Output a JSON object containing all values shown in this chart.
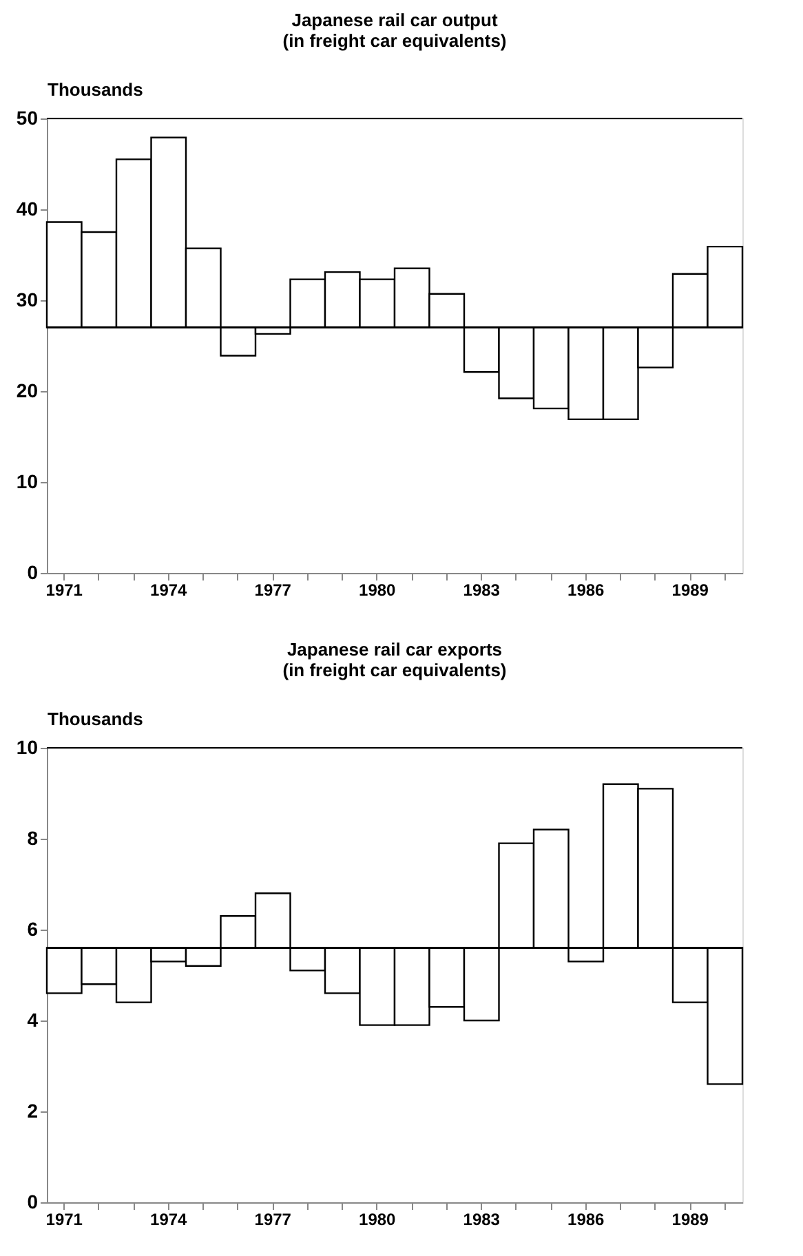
{
  "chart_data": [
    {
      "type": "bar",
      "title": "Japanese rail car output\n(in freight car equivalents)",
      "ylabel": "Thousands",
      "categories": [
        "1971",
        null,
        null,
        "1974",
        null,
        null,
        "1977",
        null,
        null,
        "1980",
        null,
        null,
        "1983",
        null,
        null,
        "1986",
        null,
        null,
        "1989",
        null
      ],
      "base": [
        27,
        27,
        27,
        27,
        27,
        27,
        27,
        27,
        27,
        27,
        27,
        27,
        27,
        27,
        27,
        27,
        27,
        27,
        27,
        27
      ],
      "values": [
        11.6,
        10.5,
        18.5,
        20.9,
        8.7,
        -3.1,
        -0.7,
        5.3,
        6.1,
        5.3,
        6.5,
        3.7,
        -4.9,
        -7.8,
        -8.9,
        -10.1,
        -10.1,
        -4.4,
        5.9,
        8.9
      ],
      "color": "#ffffff",
      "ylim": [
        0,
        50
      ],
      "yticks": [
        0,
        10,
        20,
        30,
        40,
        50
      ],
      "grid": false,
      "ref_lines": [
        {
          "axis": "y",
          "value": 27,
          "label": null
        }
      ]
    },
    {
      "type": "bar",
      "title": "Japanese rail car exports\n(in freight car equivalents)",
      "ylabel": "Thousands",
      "categories": [
        "1971",
        null,
        null,
        "1974",
        null,
        null,
        "1977",
        null,
        null,
        "1980",
        null,
        null,
        "1983",
        null,
        null,
        "1986",
        null,
        null,
        "1989",
        null
      ],
      "base": [
        5.6,
        5.6,
        5.6,
        5.6,
        5.6,
        5.6,
        5.6,
        5.6,
        5.6,
        5.6,
        5.6,
        5.6,
        5.6,
        5.6,
        5.6,
        5.6,
        5.6,
        5.6,
        5.6,
        5.6
      ],
      "values": [
        -1.0,
        -0.8,
        -1.2,
        -0.3,
        -0.4,
        0.7,
        1.2,
        -0.5,
        -1.0,
        -1.7,
        -1.7,
        -1.3,
        -1.6,
        2.3,
        2.6,
        -0.3,
        3.6,
        3.5,
        -1.2,
        -3.0
      ],
      "color": "#ffffff",
      "ylim": [
        0,
        10
      ],
      "yticks": [
        0,
        2,
        4,
        6,
        8,
        10
      ],
      "grid": false,
      "ref_lines": [
        {
          "axis": "y",
          "value": 5.6,
          "label": null
        }
      ]
    }
  ]
}
